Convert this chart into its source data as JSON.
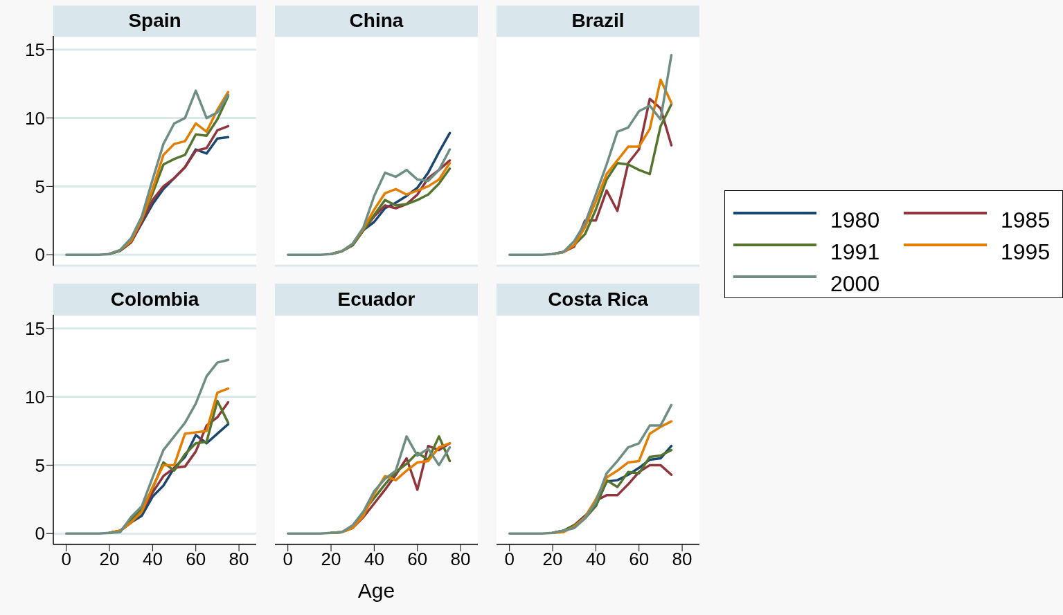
{
  "chart_data": [
    {
      "type": "line",
      "title": "Spain",
      "x": [
        0,
        5,
        10,
        15,
        20,
        25,
        30,
        35,
        40,
        45,
        50,
        55,
        60,
        65,
        70,
        75
      ],
      "xlim": [
        -6,
        88
      ],
      "xticks": [
        0,
        20,
        40,
        60,
        80
      ],
      "ylim": [
        -0.8,
        16
      ],
      "yticks": [
        0,
        5,
        10,
        15
      ],
      "grid": "y",
      "tick_labels": "y",
      "legend": "right",
      "series": [
        {
          "name": "1980",
          "color": "#1a476f",
          "values": [
            null,
            null,
            null,
            null,
            0.05,
            0.3,
            0.9,
            2.3,
            3.7,
            4.8,
            5.6,
            6.4,
            7.7,
            7.4,
            8.5,
            8.6
          ]
        },
        {
          "name": "1985",
          "color": "#90353b",
          "values": [
            null,
            null,
            null,
            null,
            0.05,
            0.3,
            0.9,
            2.4,
            4.0,
            5.0,
            5.6,
            6.4,
            7.6,
            7.8,
            9.1,
            9.4
          ]
        },
        {
          "name": "1991",
          "color": "#55752f",
          "values": [
            null,
            null,
            null,
            null,
            0.05,
            0.3,
            1.0,
            2.6,
            4.5,
            6.6,
            7.0,
            7.3,
            8.8,
            8.7,
            9.9,
            11.6
          ]
        },
        {
          "name": "1995",
          "color": "#e37e00",
          "values": [
            null,
            null,
            null,
            null,
            0.05,
            0.35,
            1.0,
            2.6,
            4.8,
            7.3,
            8.1,
            8.3,
            9.6,
            9.0,
            10.6,
            11.9
          ]
        },
        {
          "name": "2000",
          "color": "#6e8e84",
          "values": [
            0,
            0,
            0,
            0,
            0.05,
            0.35,
            1.2,
            2.8,
            5.5,
            8.1,
            9.6,
            10.0,
            12.0,
            10.0,
            10.4,
            11.7
          ]
        }
      ]
    },
    {
      "type": "line",
      "title": "China",
      "x": [
        0,
        5,
        10,
        15,
        20,
        25,
        30,
        35,
        40,
        45,
        50,
        55,
        60,
        65,
        70,
        75
      ],
      "xlim": [
        -6,
        88
      ],
      "xticks": [
        0,
        20,
        40,
        60,
        80
      ],
      "ylim": [
        -0.8,
        16
      ],
      "yticks": [
        0,
        5,
        10,
        15
      ],
      "grid": "y",
      "tick_labels": false,
      "series": [
        {
          "name": "1980",
          "color": "#1a476f",
          "values": [
            null,
            null,
            null,
            null,
            null,
            null,
            0.7,
            1.8,
            2.4,
            3.4,
            3.8,
            4.3,
            4.9,
            6.0,
            7.5,
            8.9
          ]
        },
        {
          "name": "1985",
          "color": "#90353b",
          "values": [
            null,
            null,
            null,
            null,
            0.05,
            0.25,
            0.7,
            1.8,
            2.8,
            3.6,
            3.4,
            3.7,
            4.4,
            5.6,
            6.2,
            6.9
          ]
        },
        {
          "name": "1991",
          "color": "#55752f",
          "values": [
            null,
            null,
            null,
            null,
            0.05,
            0.25,
            0.7,
            1.8,
            2.9,
            4.0,
            3.6,
            3.7,
            4.0,
            4.4,
            5.2,
            6.3
          ]
        },
        {
          "name": "1995",
          "color": "#e37e00",
          "values": [
            null,
            null,
            null,
            null,
            0.05,
            0.25,
            0.8,
            1.9,
            3.3,
            4.5,
            4.8,
            4.4,
            4.7,
            5.0,
            5.5,
            6.7
          ]
        },
        {
          "name": "2000",
          "color": "#6e8e84",
          "values": [
            0,
            0,
            0,
            0,
            0.05,
            0.25,
            0.8,
            2.0,
            4.3,
            6.0,
            5.7,
            6.2,
            5.5,
            5.4,
            6.2,
            7.7
          ]
        }
      ]
    },
    {
      "type": "line",
      "title": "Brazil",
      "x": [
        0,
        5,
        10,
        15,
        20,
        25,
        30,
        35,
        40,
        45,
        50,
        55,
        60,
        65,
        70,
        75
      ],
      "xlim": [
        -6,
        88
      ],
      "xticks": [
        0,
        20,
        40,
        60,
        80
      ],
      "ylim": [
        -0.8,
        16
      ],
      "yticks": [
        0,
        5,
        10,
        15
      ],
      "grid": "y",
      "tick_labels": false,
      "series": [
        {
          "name": "1985",
          "color": "#90353b",
          "values": [
            null,
            null,
            null,
            null,
            0.05,
            0.2,
            0.6,
            2.5,
            2.5,
            4.7,
            3.2,
            6.7,
            7.7,
            11.4,
            10.7,
            8.0
          ]
        },
        {
          "name": "1991",
          "color": "#55752f",
          "values": [
            null,
            null,
            null,
            null,
            0.05,
            0.2,
            0.7,
            1.5,
            3.3,
            5.5,
            6.7,
            6.6,
            6.2,
            5.9,
            9.4,
            11.0
          ]
        },
        {
          "name": "1995",
          "color": "#e37e00",
          "values": [
            null,
            null,
            null,
            null,
            0.05,
            0.2,
            0.7,
            2.0,
            3.9,
            5.9,
            6.9,
            7.9,
            7.9,
            9.2,
            12.8,
            11.1
          ]
        },
        {
          "name": "2000",
          "color": "#6e8e84",
          "values": [
            0,
            0,
            0,
            0,
            0.05,
            0.2,
            1.0,
            2.3,
            4.4,
            6.6,
            9.0,
            9.3,
            10.5,
            10.9,
            9.9,
            14.6
          ]
        }
      ]
    },
    {
      "type": "line",
      "title": "Colombia",
      "x": [
        0,
        5,
        10,
        15,
        20,
        25,
        30,
        35,
        40,
        45,
        50,
        55,
        60,
        65,
        70,
        75
      ],
      "xlim": [
        -6,
        88
      ],
      "xticks": [
        0,
        20,
        40,
        60,
        80
      ],
      "ylim": [
        -0.8,
        16
      ],
      "yticks": [
        0,
        5,
        10,
        15
      ],
      "grid": "y",
      "series": [
        {
          "name": "1980",
          "color": "#1a476f",
          "values": [
            null,
            null,
            null,
            null,
            0.05,
            0.2,
            0.8,
            1.3,
            2.7,
            3.5,
            4.8,
            5.6,
            7.2,
            6.6,
            7.3,
            8.0
          ]
        },
        {
          "name": "1985",
          "color": "#90353b",
          "values": [
            null,
            null,
            null,
            null,
            0.05,
            0.2,
            0.8,
            1.6,
            3.0,
            4.2,
            4.8,
            4.9,
            6.0,
            7.9,
            8.5,
            9.6
          ]
        },
        {
          "name": "1991",
          "color": "#55752f",
          "values": [
            null,
            null,
            null,
            null,
            0.05,
            0.2,
            1.0,
            1.8,
            3.3,
            5.2,
            4.6,
            5.8,
            6.6,
            6.7,
            9.7,
            8.1
          ]
        },
        {
          "name": "1995",
          "color": "#e37e00",
          "values": [
            null,
            null,
            null,
            null,
            0.05,
            0.2,
            0.8,
            1.6,
            3.4,
            5.0,
            5.0,
            7.3,
            7.4,
            7.5,
            10.3,
            10.6
          ]
        },
        {
          "name": "2000",
          "color": "#6e8e84",
          "values": [
            0,
            0,
            0,
            0,
            0.05,
            0.1,
            1.2,
            2.0,
            4.1,
            6.1,
            7.1,
            8.1,
            9.5,
            11.5,
            12.5,
            12.7
          ]
        }
      ]
    },
    {
      "type": "line",
      "title": "Ecuador",
      "xlabel": "Age",
      "x": [
        0,
        5,
        10,
        15,
        20,
        25,
        30,
        35,
        40,
        45,
        50,
        55,
        60,
        65,
        70,
        75
      ],
      "xlim": [
        -6,
        88
      ],
      "xticks": [
        0,
        20,
        40,
        60,
        80
      ],
      "ylim": [
        -0.8,
        16
      ],
      "yticks": [
        0,
        5,
        10,
        15
      ],
      "grid": "y",
      "tick_labels": "x",
      "series": [
        {
          "name": "1985",
          "color": "#90353b",
          "values": [
            null,
            null,
            null,
            null,
            0.05,
            0.1,
            0.4,
            1.2,
            2.2,
            3.2,
            4.3,
            5.5,
            3.2,
            6.4,
            6.1,
            6.6
          ]
        },
        {
          "name": "1991",
          "color": "#55752f",
          "values": [
            null,
            null,
            null,
            null,
            0.05,
            0.1,
            0.5,
            1.6,
            2.6,
            3.6,
            4.5,
            5.1,
            5.9,
            5.4,
            7.1,
            5.3
          ]
        },
        {
          "name": "1995",
          "color": "#e37e00",
          "values": [
            null,
            null,
            null,
            null,
            0.05,
            0.1,
            0.4,
            1.3,
            2.9,
            4.2,
            3.9,
            4.6,
            5.2,
            5.3,
            6.3,
            6.6
          ]
        },
        {
          "name": "2000",
          "color": "#6e8e84",
          "values": [
            0,
            0,
            0,
            0,
            0.05,
            0.1,
            0.6,
            1.6,
            3.1,
            4.0,
            4.6,
            7.1,
            5.7,
            6.2,
            5.0,
            6.3
          ]
        }
      ]
    },
    {
      "type": "line",
      "title": "Costa Rica",
      "x": [
        0,
        5,
        10,
        15,
        20,
        25,
        30,
        35,
        40,
        45,
        50,
        55,
        60,
        65,
        70,
        75
      ],
      "xlim": [
        -6,
        88
      ],
      "xticks": [
        0,
        20,
        40,
        60,
        80
      ],
      "ylim": [
        -0.8,
        16
      ],
      "yticks": [
        0,
        5,
        10,
        15
      ],
      "grid": "y",
      "tick_labels": "x",
      "series": [
        {
          "name": "1980",
          "color": "#1a476f",
          "values": [
            null,
            null,
            null,
            null,
            0.05,
            0.2,
            0.6,
            1.3,
            2.0,
            3.8,
            3.9,
            4.3,
            4.8,
            5.4,
            5.5,
            6.4
          ]
        },
        {
          "name": "1985",
          "color": "#90353b",
          "values": [
            null,
            null,
            null,
            null,
            0.05,
            0.2,
            0.6,
            1.2,
            2.4,
            2.8,
            2.8,
            3.6,
            4.5,
            5.0,
            5.0,
            4.3
          ]
        },
        {
          "name": "1991",
          "color": "#55752f",
          "values": [
            null,
            null,
            null,
            null,
            0.05,
            0.2,
            0.6,
            1.1,
            2.0,
            3.9,
            3.4,
            4.5,
            4.4,
            5.6,
            5.7,
            6.1
          ]
        },
        {
          "name": "1995",
          "color": "#e37e00",
          "values": [
            null,
            null,
            null,
            null,
            0.05,
            0.1,
            0.5,
            1.2,
            2.5,
            4.1,
            4.6,
            5.2,
            5.3,
            7.3,
            7.8,
            8.2
          ]
        },
        {
          "name": "2000",
          "color": "#6e8e84",
          "values": [
            0,
            0,
            0,
            0,
            0.05,
            0.2,
            0.4,
            1.1,
            2.3,
            4.4,
            5.3,
            6.3,
            6.6,
            7.9,
            7.9,
            9.4
          ]
        }
      ]
    }
  ]
}
